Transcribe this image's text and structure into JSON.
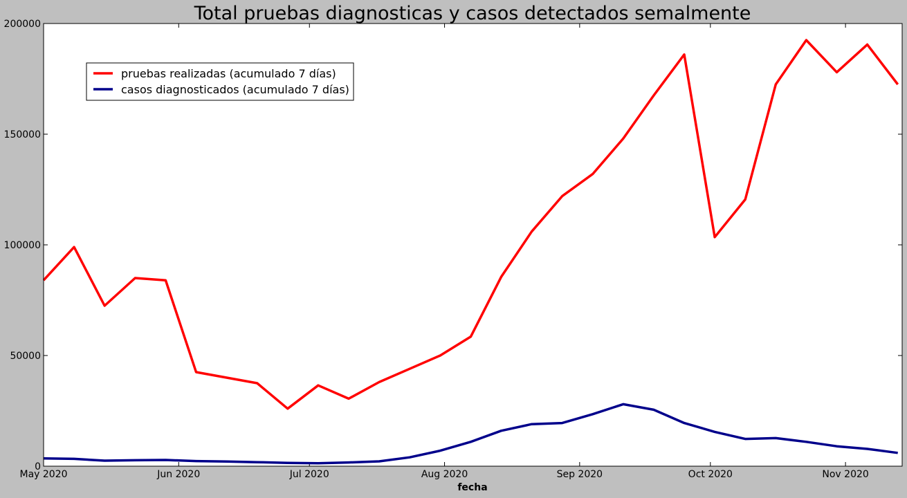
{
  "chart_data": {
    "type": "line",
    "title": "Total pruebas diagnosticas y casos detectados semalmente",
    "xlabel": "fecha",
    "ylabel": "",
    "ylim": [
      0,
      200000
    ],
    "xlim": [
      "2020-05-01",
      "2020-11-14"
    ],
    "y_ticks": [
      0,
      50000,
      100000,
      150000,
      200000
    ],
    "y_tick_labels": [
      "0",
      "50000",
      "100000",
      "150000",
      "200000"
    ],
    "x_ticks": [
      "2020-05-01",
      "2020-06-01",
      "2020-07-01",
      "2020-08-01",
      "2020-09-01",
      "2020-10-01",
      "2020-11-01"
    ],
    "x_tick_labels": [
      "May 2020",
      "Jun 2020",
      "Jul 2020",
      "Aug 2020",
      "Sep 2020",
      "Oct 2020",
      "Nov 2020"
    ],
    "legend_position": "top-left",
    "grid": false,
    "x": [
      "2020-05-01",
      "2020-05-08",
      "2020-05-15",
      "2020-05-22",
      "2020-05-29",
      "2020-06-05",
      "2020-06-12",
      "2020-06-19",
      "2020-06-26",
      "2020-07-03",
      "2020-07-10",
      "2020-07-17",
      "2020-07-24",
      "2020-07-31",
      "2020-08-07",
      "2020-08-14",
      "2020-08-21",
      "2020-08-28",
      "2020-09-04",
      "2020-09-11",
      "2020-09-18",
      "2020-09-25",
      "2020-10-02",
      "2020-10-09",
      "2020-10-16",
      "2020-10-23",
      "2020-10-30",
      "2020-11-06",
      "2020-11-13"
    ],
    "series": [
      {
        "name": "pruebas realizadas (acumulado 7 días)",
        "color": "#ff0000",
        "values": [
          84000,
          99000,
          72500,
          85000,
          84000,
          42500,
          40000,
          37500,
          26000,
          36500,
          30500,
          38000,
          44000,
          50000,
          58500,
          85500,
          106000,
          122000,
          132000,
          148000,
          167500,
          186000,
          103500,
          120500,
          172500,
          192500,
          178000,
          190500,
          172500
        ]
      },
      {
        "name": "casos diagnosticados (acumulado 7 días)",
        "color": "#00008b",
        "values": [
          3500,
          3300,
          2500,
          2700,
          2800,
          2300,
          2100,
          1800,
          1500,
          1300,
          1700,
          2200,
          4000,
          7000,
          11000,
          16000,
          19000,
          19500,
          23500,
          28000,
          25500,
          19500,
          15500,
          12300,
          12700,
          11000,
          9000,
          7800,
          6000
        ]
      }
    ]
  }
}
